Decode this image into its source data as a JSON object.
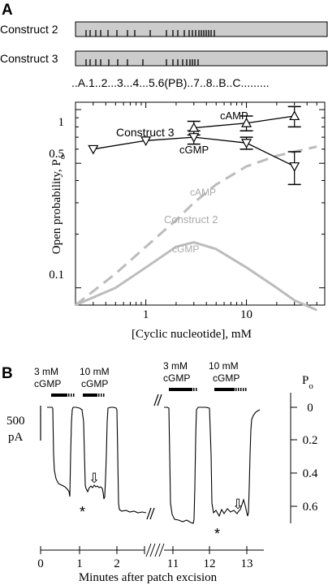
{
  "panel_a": {
    "label": "A",
    "constructs": [
      {
        "name": "Construct 2",
        "tick_count": 23
      },
      {
        "name": "Construct 3",
        "tick_count": 17
      }
    ],
    "domain_string": "..A.1..2...3...4...5.6(PB)..7..8..B..C.........",
    "colors": {
      "bar_fill": "#cccccc",
      "gray_curve": "#bcbcbc"
    }
  },
  "panel_b": {
    "label": "B",
    "scale_bar_value": "500",
    "scale_bar_unit": "pA",
    "po_label": "P",
    "po_subscript": "o",
    "po_ticks": [
      "0",
      "0.2",
      "0.4",
      "0.6"
    ],
    "stimuli": [
      {
        "line1": "3 mM",
        "line2": "cGMP"
      },
      {
        "line1": "10 mM",
        "line2": "cGMP"
      },
      {
        "line1": "3 mM",
        "line2": "cGMP"
      },
      {
        "line1": "10 mM",
        "line2": "cGMP"
      }
    ],
    "marks": {
      "asterisk": "*",
      "arrow": "⇩"
    },
    "x_ticks_left": [
      "0",
      "1",
      "2"
    ],
    "x_ticks_right": [
      "11",
      "12",
      "13"
    ],
    "xlabel": "Minutes after patch excision"
  },
  "chart_data": {
    "type": "scatter",
    "xlabel": "[Cyclic nucleotide], mM",
    "ylabel": "Open probability, P",
    "ylabel_sub": "o",
    "xscale": "log",
    "yscale": "log",
    "xlim": [
      0.2,
      60
    ],
    "ylim": [
      0.08,
      1.1
    ],
    "x_tick_labels": [
      "1",
      "10"
    ],
    "y_tick_labels": [
      "1",
      "0.5",
      "0.1"
    ],
    "x_ticks": [
      1,
      10
    ],
    "y_ticks": [
      1,
      0.5,
      0.1
    ],
    "series": [
      {
        "name": "cAMP",
        "group": "Construct 3",
        "marker": "triangle-up",
        "x": [
          3,
          10,
          30
        ],
        "y": [
          0.79,
          0.84,
          0.92
        ],
        "err": [
          0.07,
          0.08,
          0.12
        ]
      },
      {
        "name": "cGMP",
        "group": "Construct 3",
        "marker": "triangle-down",
        "x": [
          0.3,
          1,
          3,
          10,
          30
        ],
        "y": [
          0.6,
          0.67,
          0.7,
          0.65,
          0.48
        ],
        "err": [
          0.02,
          0.02,
          0.06,
          0.05,
          0.1
        ]
      },
      {
        "name": "cAMP",
        "group": "Construct 2",
        "style": "dashed",
        "x": [
          0.2,
          0.5,
          1,
          2,
          3,
          5,
          10,
          20,
          30,
          50
        ],
        "y": [
          0.08,
          0.12,
          0.17,
          0.24,
          0.3,
          0.38,
          0.48,
          0.55,
          0.58,
          0.62
        ]
      },
      {
        "name": "cGMP",
        "group": "Construct 2",
        "style": "solid",
        "x": [
          0.2,
          0.5,
          1,
          2,
          3,
          5,
          10,
          20,
          30,
          50
        ],
        "y": [
          0.08,
          0.1,
          0.13,
          0.17,
          0.18,
          0.165,
          0.13,
          0.1,
          0.085,
          0.075
        ]
      }
    ],
    "annotations": [
      "Construct 3",
      "cAMP",
      "cGMP",
      "cAMP",
      "Construct 2",
      "cGMP"
    ]
  }
}
